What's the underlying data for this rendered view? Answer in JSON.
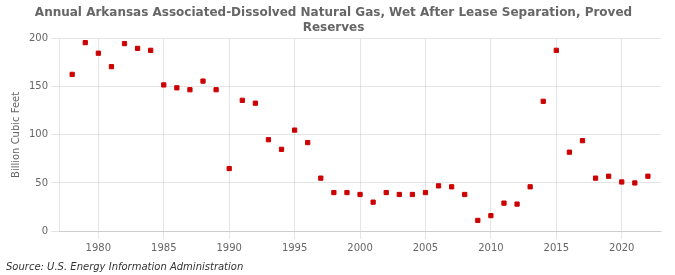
{
  "chart_data": {
    "type": "scatter",
    "title": "Annual Arkansas Associated-Dissolved Natural Gas, Wet After Lease Separation, Proved\nReserves",
    "ylabel": "Billion Cubic Feet",
    "source": "Source: U.S. Energy Information Administration",
    "x": [
      1978,
      1979,
      1980,
      1981,
      1982,
      1983,
      1984,
      1985,
      1986,
      1987,
      1988,
      1989,
      1990,
      1991,
      1992,
      1993,
      1994,
      1995,
      1996,
      1997,
      1998,
      1999,
      2000,
      2001,
      2002,
      2003,
      2004,
      2005,
      2006,
      2007,
      2008,
      2009,
      2010,
      2011,
      2012,
      2013,
      2014,
      2015,
      2016,
      2017,
      2018,
      2019,
      2020,
      2021,
      2022
    ],
    "values": [
      163,
      196,
      185,
      171,
      195,
      190,
      188,
      152,
      149,
      147,
      156,
      147,
      65,
      136,
      133,
      95,
      85,
      105,
      92,
      55,
      40,
      40,
      38,
      30,
      40,
      38,
      38,
      40,
      47,
      46,
      38,
      11,
      16,
      29,
      28,
      46,
      135,
      188,
      82,
      94,
      55,
      57,
      51,
      50,
      57
    ],
    "color": "#cc0000",
    "marker": "square",
    "xlim": [
      1977,
      2023
    ],
    "xticks": [
      1980,
      1985,
      1990,
      1995,
      2000,
      2005,
      2010,
      2015,
      2020
    ],
    "ylim": [
      0,
      200
    ],
    "yticks": [
      0,
      50,
      100,
      150,
      200
    ],
    "grid": true
  }
}
